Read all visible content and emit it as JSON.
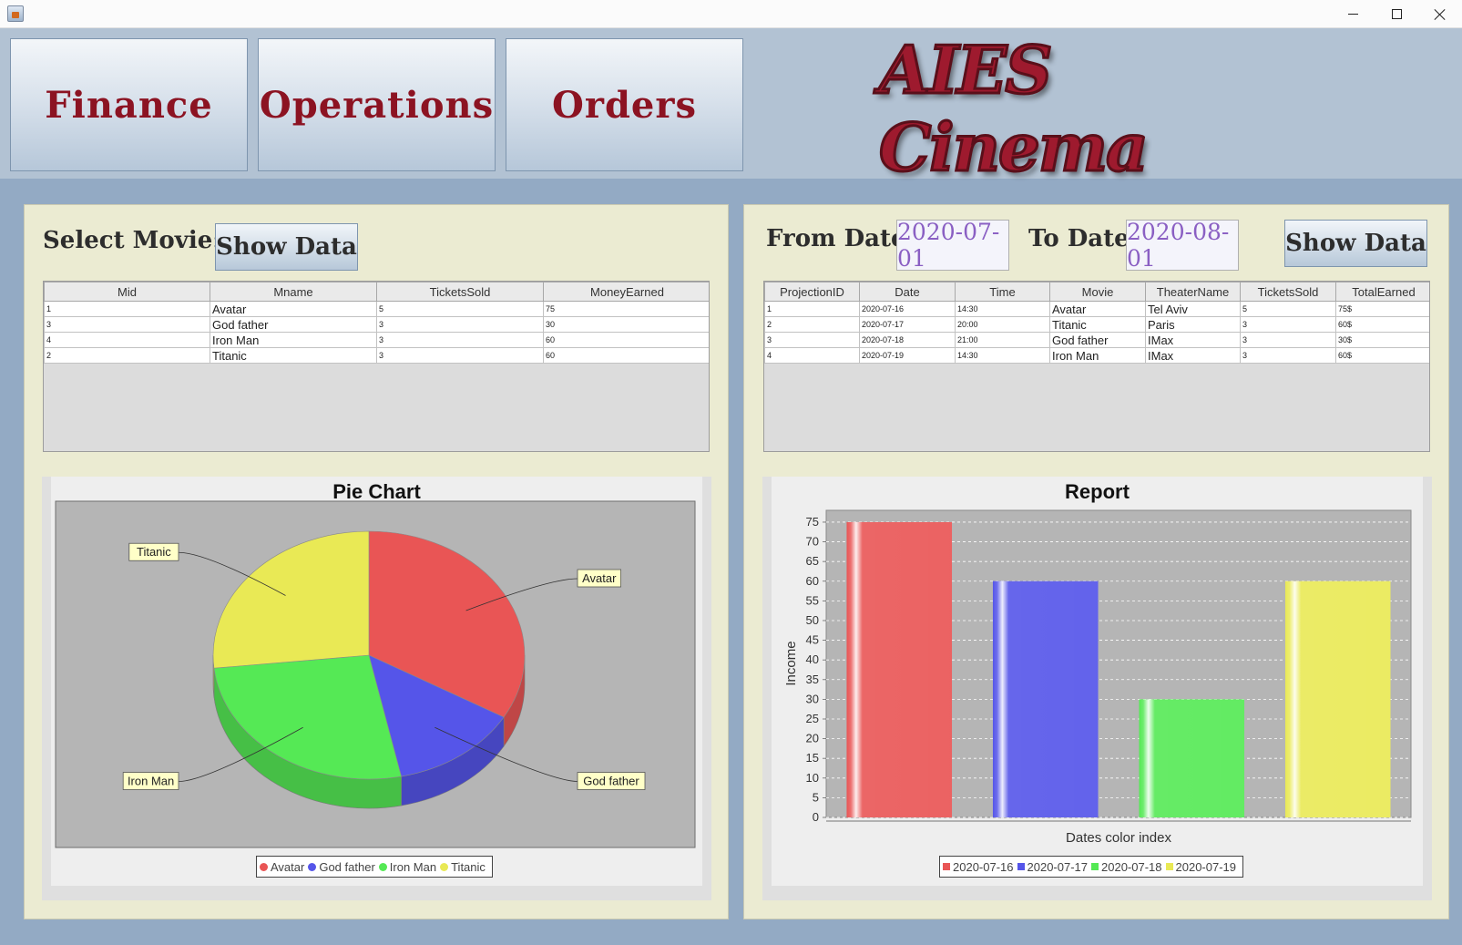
{
  "window": {
    "icon": "java-cup-icon",
    "controls": [
      "minimize-icon",
      "maximize-icon",
      "close-icon"
    ]
  },
  "nav": {
    "finance": "Finance",
    "operations": "Operations",
    "orders": "Orders"
  },
  "brand": {
    "text": "AIES Cinema"
  },
  "movie_panel": {
    "select_label": "Select Movie:",
    "show_button": "Show Data",
    "columns": [
      "Mid",
      "Mname",
      "TicketsSold",
      "MoneyEarned"
    ],
    "rows": [
      [
        "1",
        "Avatar",
        "5",
        "75"
      ],
      [
        "3",
        "God father",
        "3",
        "30"
      ],
      [
        "4",
        "Iron Man",
        "3",
        "60"
      ],
      [
        "2",
        "Titanic",
        "3",
        "60"
      ]
    ]
  },
  "date_panel": {
    "from_label": "From Date:",
    "from_value": "2020-07-01",
    "to_label": "To Date:",
    "to_value": "2020-08-01",
    "show_button": "Show Data",
    "columns": [
      "ProjectionID",
      "Date",
      "Time",
      "Movie",
      "TheaterName",
      "TicketsSold",
      "TotalEarned"
    ],
    "rows": [
      [
        "1",
        "2020-07-16",
        "14:30",
        "Avatar",
        "Tel Aviv",
        "5",
        "75$"
      ],
      [
        "2",
        "2020-07-17",
        "20:00",
        "Titanic",
        "Paris",
        "3",
        "60$"
      ],
      [
        "3",
        "2020-07-18",
        "21:00",
        "God father",
        "IMax",
        "3",
        "30$"
      ],
      [
        "4",
        "2020-07-19",
        "14:30",
        "Iron Man",
        "IMax",
        "3",
        "60$"
      ]
    ]
  },
  "chart_data": [
    {
      "type": "pie",
      "title": "Pie Chart",
      "categories": [
        "Avatar",
        "God father",
        "Iron Man",
        "Titanic"
      ],
      "values": [
        75,
        30,
        60,
        60
      ],
      "colors": [
        "#e95555",
        "#5555e9",
        "#55e955",
        "#e9e955"
      ],
      "legend_position": "bottom"
    },
    {
      "type": "bar",
      "title": "Report",
      "xlabel": "Dates color index",
      "ylabel": "Income",
      "categories": [
        "2020-07-16",
        "2020-07-17",
        "2020-07-18",
        "2020-07-19"
      ],
      "values": [
        75,
        60,
        30,
        60
      ],
      "colors": [
        "#e95555",
        "#5555e9",
        "#55e955",
        "#e9e955"
      ],
      "ylim": [
        0,
        78
      ],
      "ticks": [
        0,
        5,
        10,
        15,
        20,
        25,
        30,
        35,
        40,
        45,
        50,
        55,
        60,
        65,
        70,
        75
      ],
      "grid": true,
      "legend_position": "bottom"
    }
  ]
}
